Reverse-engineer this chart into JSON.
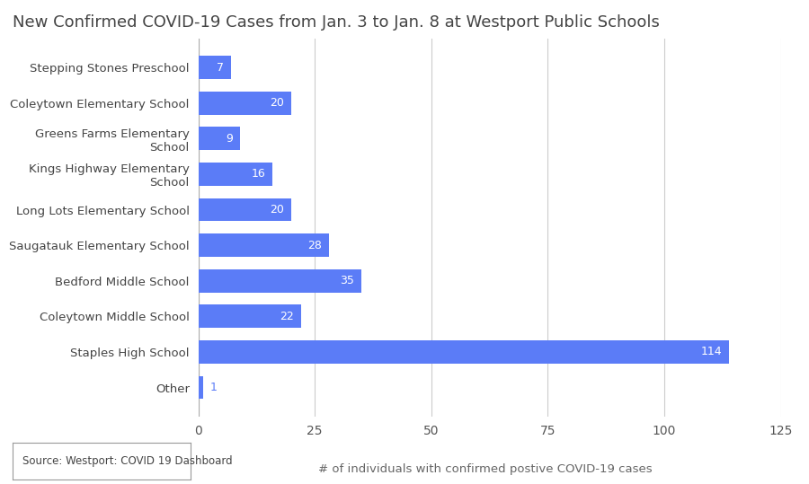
{
  "title": "New Confirmed COVID-19 Cases from Jan. 3 to Jan. 8 at Westport Public Schools",
  "categories": [
    "Other",
    "Staples High School",
    "Coleytown Middle School",
    "Bedford Middle School",
    "Saugatauk Elementary School",
    "Long Lots Elementary School",
    "Kings Highway Elementary\nSchool",
    "Greens Farms Elementary\nSchool",
    "Coleytown Elementary School",
    "Stepping Stones Preschool"
  ],
  "values": [
    1,
    114,
    22,
    35,
    28,
    20,
    16,
    9,
    20,
    7
  ],
  "bar_color": "#5b7cf7",
  "xlabel": "# of individuals with confirmed postive COVID-19 cases",
  "source": "Source: Westport: COVID 19 Dashboard",
  "xlim": [
    0,
    125
  ],
  "xticks": [
    0,
    25,
    50,
    75,
    100,
    125
  ],
  "background_color": "#ffffff",
  "grid_color": "#cccccc",
  "label_color_inside": "#ffffff",
  "label_color_outside": "#5b7cf7",
  "label_fontsize": 9,
  "title_fontsize": 13,
  "tick_fontsize": 10,
  "ylabel_fontsize": 9.5,
  "xlabel_fontsize": 9.5,
  "source_fontsize": 8.5
}
